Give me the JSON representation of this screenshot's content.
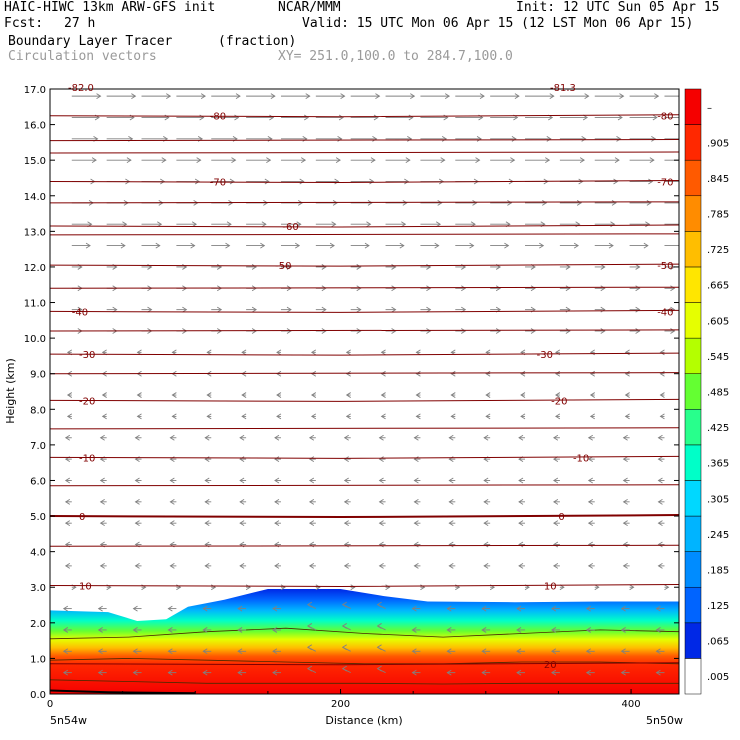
{
  "header": {
    "model_line": "HAIC-HIWC 13km ARW-GFS init",
    "org": "NCAR/MMM",
    "init": "Init: 12 UTC Sun 05 Apr 15",
    "fcst_label": "Fcst:",
    "fcst_value": "27 h",
    "valid": "Valid: 15 UTC Mon 06 Apr 15 (12 LST Mon 06 Apr 15)",
    "field_name": "Boundary Layer Tracer",
    "field_units": "(fraction)",
    "vector_label": "Circulation vectors",
    "xy_range": "XY= 251.0,100.0 to 284.7,100.0"
  },
  "chart_data": {
    "type": "heatmap",
    "title": "Boundary Layer Tracer",
    "xlabel": "Distance (km)",
    "ylabel": "Height (km)",
    "xlim": [
      0,
      433
    ],
    "ylim": [
      0,
      17
    ],
    "x_ticks": [
      "0",
      "200",
      "400"
    ],
    "y_ticks": [
      "0.0",
      "1.0",
      "2.0",
      "3.0",
      "4.0",
      "5.0",
      "6.0",
      "7.0",
      "8.0",
      "9.0",
      "10.0",
      "11.0",
      "12.0",
      "13.0",
      "14.0",
      "15.0",
      "16.0",
      "17.0"
    ],
    "x_start_label": "5n54w",
    "x_end_label": "5n50w",
    "corner_labels": [
      "-82.0",
      "-81.3"
    ],
    "colorbar_levels": [
      ".005",
      ".065",
      ".125",
      ".185",
      ".245",
      ".305",
      ".365",
      ".425",
      ".485",
      ".545",
      ".605",
      ".665",
      ".725",
      ".785",
      ".845",
      ".905",
      "–"
    ],
    "colorbar_colors": [
      "#ffffff",
      "#0028e6",
      "#0064ff",
      "#008cff",
      "#00b4ff",
      "#00d8ff",
      "#00ffc8",
      "#28ff8c",
      "#64ff32",
      "#b4ff00",
      "#e6ff00",
      "#ffe600",
      "#ffbe00",
      "#ff8c00",
      "#ff5a00",
      "#ff2800",
      "#f50000"
    ],
    "tracer_top_km": [
      [
        0,
        2.35
      ],
      [
        40,
        2.3
      ],
      [
        60,
        2.05
      ],
      [
        80,
        2.1
      ],
      [
        95,
        2.45
      ],
      [
        120,
        2.65
      ],
      [
        150,
        2.95
      ],
      [
        200,
        2.95
      ],
      [
        230,
        2.75
      ],
      [
        260,
        2.6
      ],
      [
        320,
        2.58
      ],
      [
        380,
        2.6
      ],
      [
        433,
        2.6
      ]
    ],
    "temperature_contours": [
      {
        "label": "-80",
        "height_km": 16.25,
        "label_x_km": [
          110,
          418
        ]
      },
      {
        "label": "-70",
        "height_km": 14.4,
        "label_x_km": [
          110,
          418
        ]
      },
      {
        "label": "-60",
        "height_km": 13.15,
        "label_x_km": [
          160
        ]
      },
      {
        "label": "-50",
        "height_km": 12.05,
        "label_x_km": [
          155,
          418
        ]
      },
      {
        "label": "-40",
        "height_km": 10.75,
        "label_x_km": [
          15,
          418
        ]
      },
      {
        "label": "-30",
        "height_km": 9.55,
        "label_x_km": [
          20,
          335
        ]
      },
      {
        "label": "-20",
        "height_km": 8.25,
        "label_x_km": [
          20,
          345
        ]
      },
      {
        "label": "-10",
        "height_km": 6.65,
        "label_x_km": [
          20,
          360
        ]
      },
      {
        "label": "0",
        "height_km": 5.0,
        "label_x_km": [
          20,
          350
        ]
      },
      {
        "label": "10",
        "height_km": 3.05,
        "label_x_km": [
          20,
          340
        ]
      },
      {
        "label": "20",
        "height_km": 0.85,
        "label_x_km": [
          340
        ]
      }
    ],
    "colors": {
      "contour": "#800000",
      "vector": "#808080",
      "axis": "#000000"
    }
  }
}
